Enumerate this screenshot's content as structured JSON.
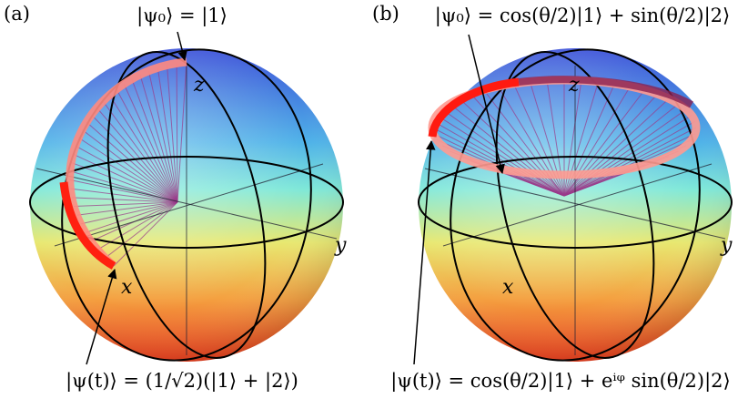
{
  "panels": [
    {
      "tag": "(a)",
      "initial_state": "|ψ₀⟩ = |1⟩",
      "axes": {
        "x": "x",
        "y": "y",
        "z": "z"
      },
      "final_state": "|ψ(t)⟩ = (1/√2)(|1⟩ + |2⟩)"
    },
    {
      "tag": "(b)",
      "initial_state": "|ψ₀⟩ = cos(θ/2)|1⟩ + sin(θ/2)|2⟩",
      "axes": {
        "x": "x",
        "y": "y",
        "z": "z"
      },
      "final_state": "|ψ(t)⟩ = cos(θ/2)|1⟩ + eⁱᵠ sin(θ/2)|2⟩"
    }
  ]
}
